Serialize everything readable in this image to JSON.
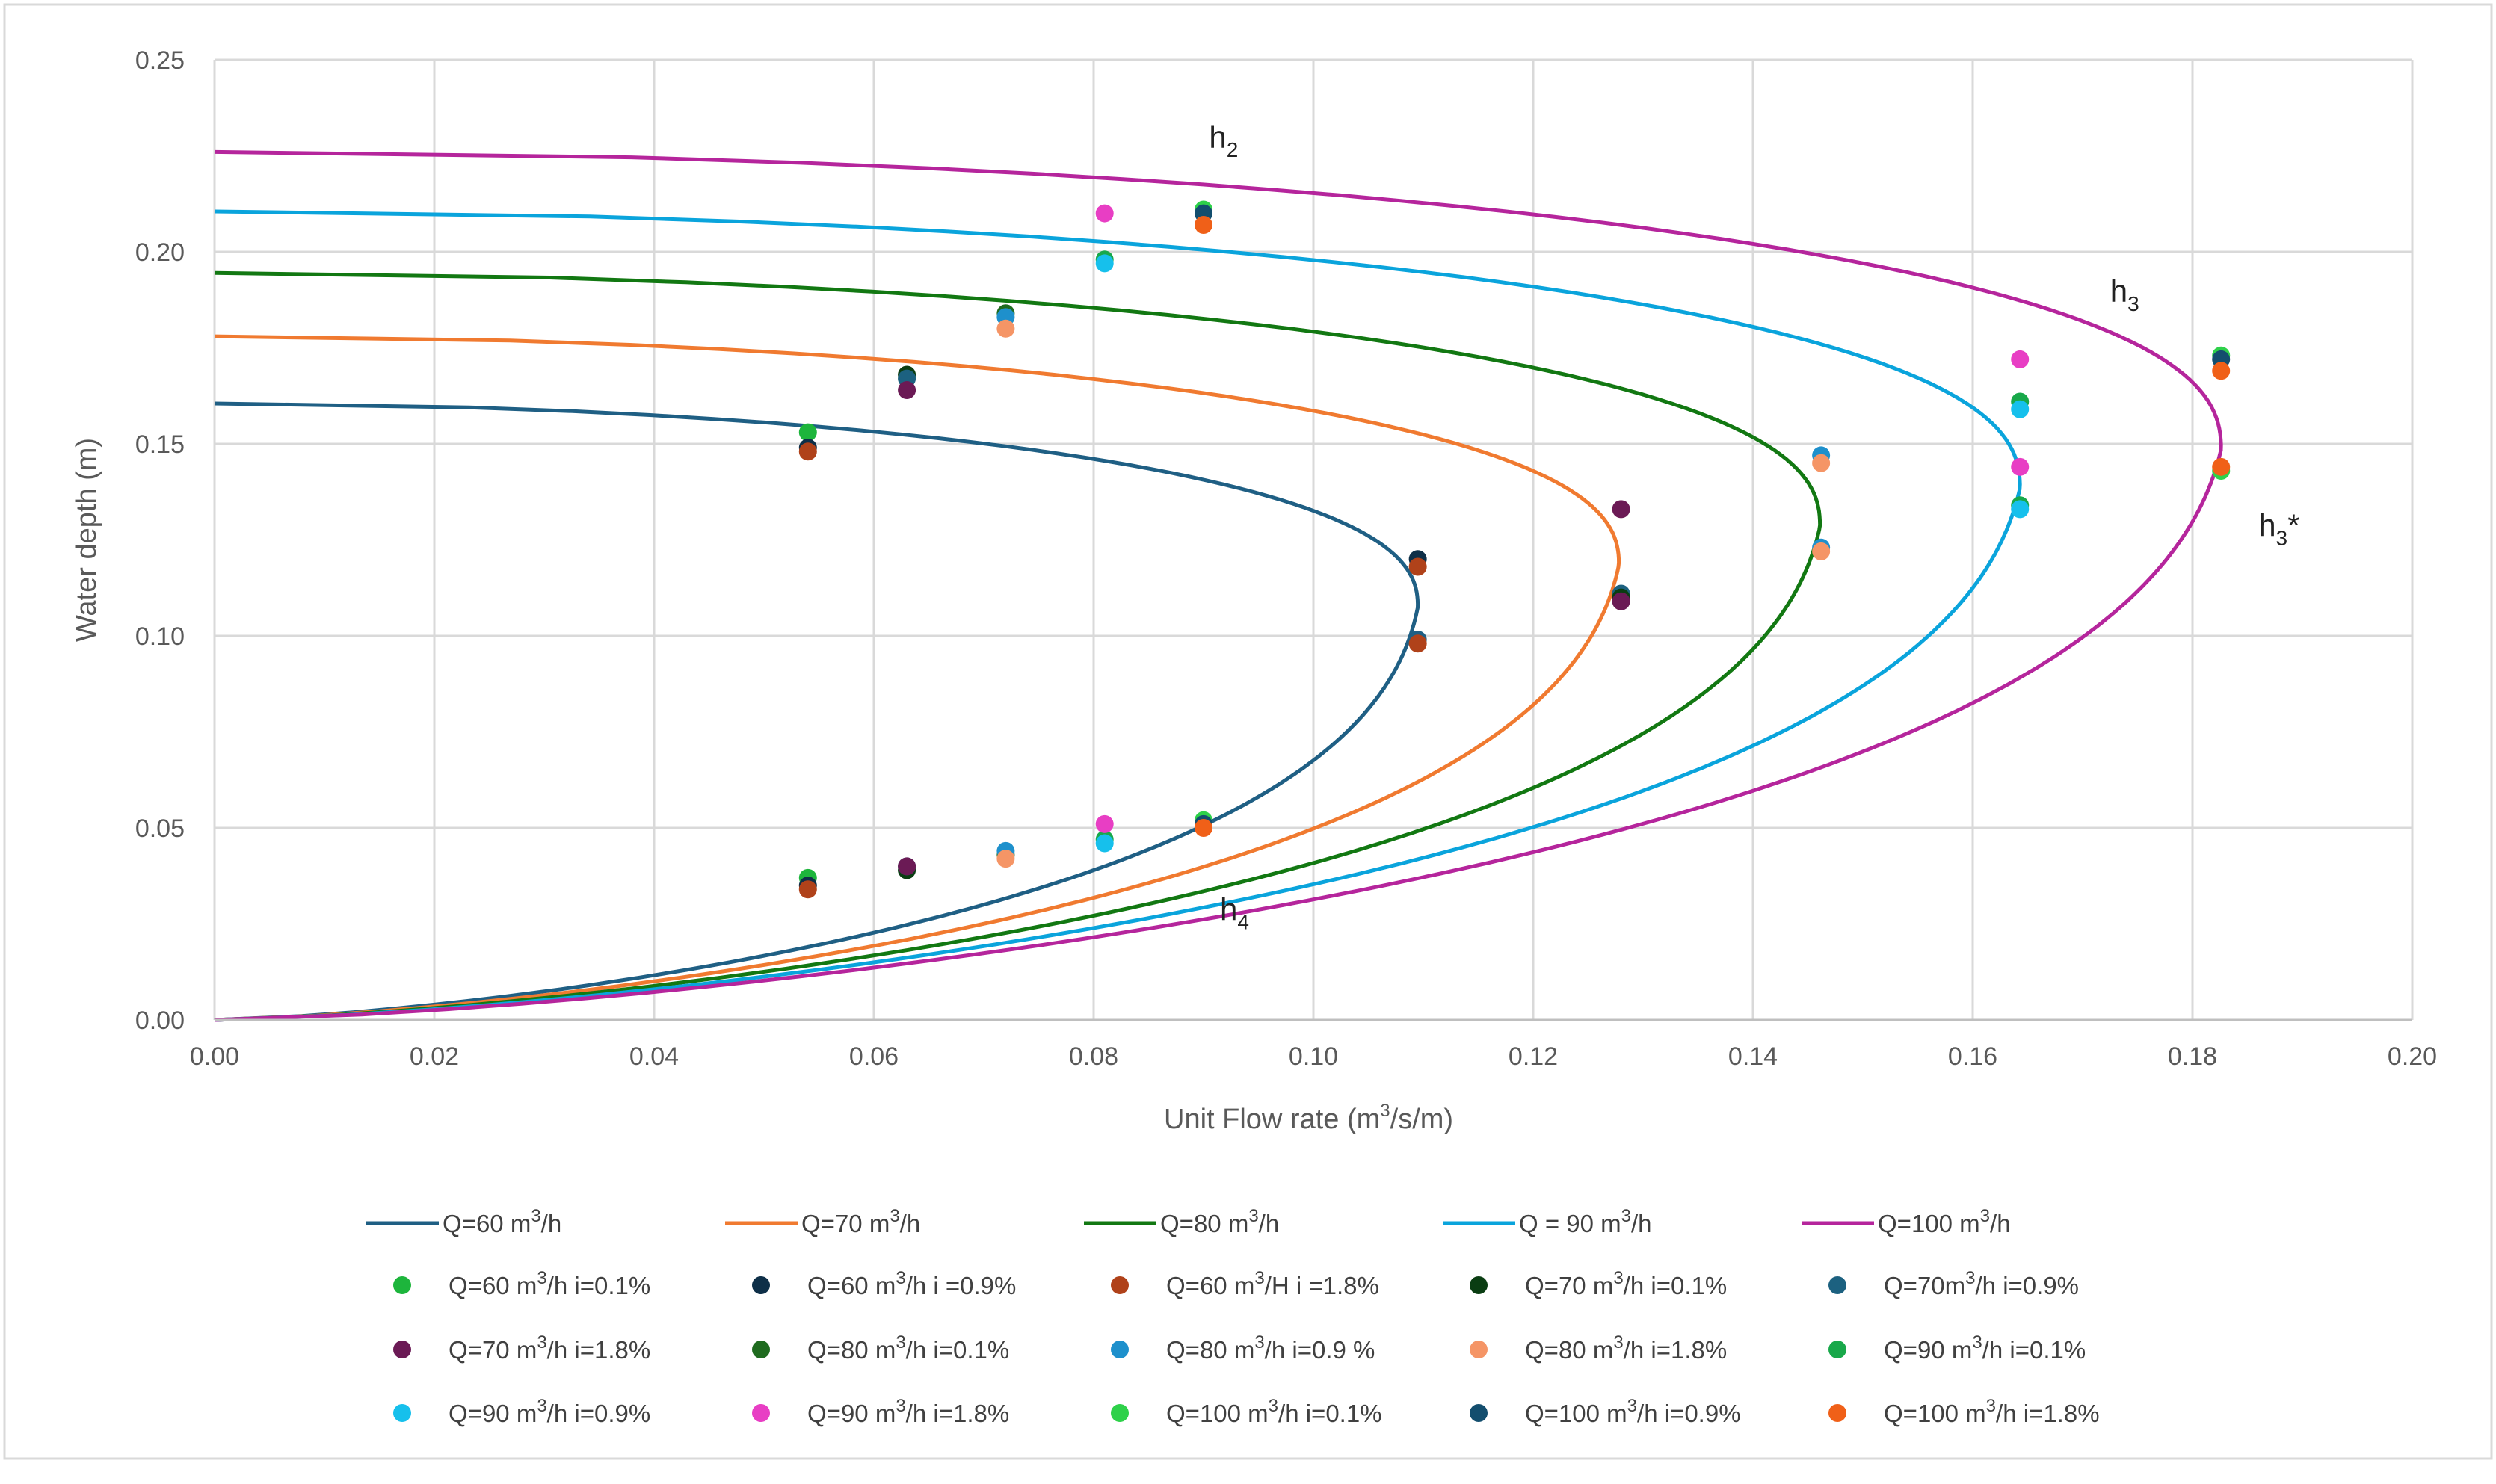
{
  "chart_data": {
    "type": "line",
    "title": "",
    "xlabel_parts": [
      "Unit Flow rate (m",
      "3",
      "/s/m)"
    ],
    "ylabel": "Water depth (m)",
    "xlim": [
      0,
      0.2
    ],
    "ylim": [
      0,
      0.25
    ],
    "x_ticks": [
      "0.00",
      "0.02",
      "0.04",
      "0.06",
      "0.08",
      "0.10",
      "0.12",
      "0.14",
      "0.16",
      "0.18",
      "0.20"
    ],
    "y_ticks": [
      "0.00",
      "0.05",
      "0.10",
      "0.15",
      "0.20",
      "0.25"
    ],
    "grid": true,
    "legend_position": "bottom",
    "annotations": [
      {
        "base": "h",
        "sub": "2",
        "sup": "",
        "suffix": "",
        "x": 0.0905,
        "y": 0.227
      },
      {
        "base": "h",
        "sub": "3",
        "sup": "",
        "suffix": "",
        "x": 0.1725,
        "y": 0.187
      },
      {
        "base": "h",
        "sub": "3",
        "sup": "",
        "suffix": "*",
        "x": 0.186,
        "y": 0.126
      },
      {
        "base": "h",
        "sub": "4",
        "sup": "",
        "suffix": "",
        "x": 0.0915,
        "y": 0.026
      }
    ],
    "curves": [
      {
        "name_pre": "Q=60 m",
        "name_sup": "3",
        "name_post": "/h",
        "color": "#1f5f84",
        "h_upper": 0.1605,
        "h_lower": 0.0,
        "q_crit": 0.1095,
        "y_crit": 0.1075,
        "curvature": 0.06,
        "x_head": 0.008
      },
      {
        "name_pre": "Q=70 m",
        "name_sup": "3",
        "name_post": "/h",
        "color": "#f07a30",
        "h_upper": 0.178,
        "h_lower": 0.0,
        "q_crit": 0.1278,
        "y_crit": 0.1185,
        "curvature": 0.04,
        "x_head": 0.0
      },
      {
        "name_pre": "Q=80 m",
        "name_sup": "3",
        "name_post": "/h",
        "color": "#127812",
        "h_upper": 0.1945,
        "h_lower": 0.0,
        "q_crit": 0.1461,
        "y_crit": 0.1285,
        "curvature": 0.03,
        "x_head": 0.0
      },
      {
        "name_pre": "Q = 90 m",
        "name_sup": "3",
        "name_post": "/h",
        "color": "#0aa4dc",
        "h_upper": 0.2105,
        "h_lower": 0.0,
        "q_crit": 0.1643,
        "y_crit": 0.1385,
        "curvature": 0.03,
        "x_head": 0.004
      },
      {
        "name_pre": "Q=100 m",
        "name_sup": "3",
        "name_post": "/h",
        "color": "#b5259c",
        "h_upper": 0.226,
        "h_lower": 0.0,
        "q_crit": 0.1826,
        "y_crit": 0.1485,
        "curvature": 0.02,
        "x_head": 0.0
      }
    ],
    "point_series": [
      {
        "name_pre": "Q=60 m",
        "name_sup": "3",
        "name_post": "/h i=0.1%",
        "color": "#1db53c",
        "points": [
          [
            0.054,
            0.153
          ],
          [
            0.054,
            0.037
          ]
        ]
      },
      {
        "name_pre": "Q=60 m",
        "name_sup": "3",
        "name_post": "/h i =0.9%",
        "color": "#0e2f48",
        "points": [
          [
            0.054,
            0.149
          ],
          [
            0.054,
            0.035
          ]
        ]
      },
      {
        "name_pre": "Q=60 m",
        "name_sup": "3",
        "name_post": "/H i =1.8%",
        "color": "#b0421a",
        "points": [
          [
            0.054,
            0.148
          ],
          [
            0.054,
            0.034
          ]
        ]
      },
      {
        "name_pre": "Q=70 m",
        "name_sup": "3",
        "name_post": "/h i=0.1%",
        "color": "#0a3d12",
        "points": [
          [
            0.063,
            0.168
          ],
          [
            0.063,
            0.039
          ]
        ]
      },
      {
        "name_pre": "Q=70m",
        "name_sup": "3",
        "name_post": "/h i=0.9%",
        "color": "#1c6180",
        "points": [
          [
            0.063,
            0.167
          ],
          [
            0.063,
            0.04
          ]
        ]
      },
      {
        "name_pre": "Q=70 m",
        "name_sup": "3",
        "name_post": "/h i=1.8%",
        "color": "#6b1a55",
        "points": [
          [
            0.063,
            0.164
          ],
          [
            0.063,
            0.04
          ]
        ]
      },
      {
        "name_pre": "Q=80 m",
        "name_sup": "3",
        "name_post": "/h i=0.1%",
        "color": "#1f6b1f",
        "points": [
          [
            0.072,
            0.184
          ],
          [
            0.072,
            0.043
          ]
        ]
      },
      {
        "name_pre": "Q=80 m",
        "name_sup": "3",
        "name_post": "/h i=0.9 %",
        "color": "#1e90cc",
        "points": [
          [
            0.072,
            0.183
          ],
          [
            0.072,
            0.044
          ]
        ]
      },
      {
        "name_pre": "Q=80 m",
        "name_sup": "3",
        "name_post": "/h i=1.8%",
        "color": "#f59566",
        "points": [
          [
            0.072,
            0.18
          ],
          [
            0.072,
            0.042
          ]
        ]
      },
      {
        "name_pre": "Q=90 m",
        "name_sup": "3",
        "name_post": "/h i=0.1%",
        "color": "#18a84a",
        "points": [
          [
            0.081,
            0.198
          ],
          [
            0.081,
            0.047
          ]
        ]
      },
      {
        "name_pre": "Q=90 m",
        "name_sup": "3",
        "name_post": "/h i=0.9%",
        "color": "#16c0ec",
        "points": [
          [
            0.081,
            0.197
          ],
          [
            0.081,
            0.046
          ]
        ]
      },
      {
        "name_pre": "Q=90 m",
        "name_sup": "3",
        "name_post": "/h i=1.8%",
        "color": "#e83ec4",
        "points": [
          [
            0.081,
            0.21
          ],
          [
            0.081,
            0.051
          ]
        ]
      },
      {
        "name_pre": "Q=100 m",
        "name_sup": "3",
        "name_post": "/h i=0.1%",
        "color": "#2ed14a",
        "points": [
          [
            0.09,
            0.211
          ],
          [
            0.09,
            0.052
          ]
        ]
      },
      {
        "name_pre": "Q=100 m",
        "name_sup": "3",
        "name_post": "/h i=0.9%",
        "color": "#134e6e",
        "points": [
          [
            0.09,
            0.21
          ],
          [
            0.09,
            0.051
          ]
        ]
      },
      {
        "name_pre": "Q=100 m",
        "name_sup": "3",
        "name_post": "/h i=1.8%",
        "color": "#f06018",
        "points": [
          [
            0.09,
            0.207
          ],
          [
            0.09,
            0.05
          ]
        ]
      }
    ],
    "extra_points": [
      {
        "color": "#0e2f48",
        "x": 0.1095,
        "y": 0.12
      },
      {
        "color": "#b0421a",
        "x": 0.1095,
        "y": 0.118
      },
      {
        "color": "#1f5f84",
        "x": 0.1095,
        "y": 0.099
      },
      {
        "color": "#b0421a",
        "x": 0.1095,
        "y": 0.098
      },
      {
        "color": "#6b1a55",
        "x": 0.128,
        "y": 0.133
      },
      {
        "color": "#1c6180",
        "x": 0.128,
        "y": 0.111
      },
      {
        "color": "#0a3d12",
        "x": 0.128,
        "y": 0.11
      },
      {
        "color": "#6b1a55",
        "x": 0.128,
        "y": 0.109
      },
      {
        "color": "#1e90cc",
        "x": 0.1462,
        "y": 0.147
      },
      {
        "color": "#f59566",
        "x": 0.1462,
        "y": 0.145
      },
      {
        "color": "#1e90cc",
        "x": 0.1462,
        "y": 0.123
      },
      {
        "color": "#f59566",
        "x": 0.1462,
        "y": 0.122
      },
      {
        "color": "#e83ec4",
        "x": 0.1643,
        "y": 0.172
      },
      {
        "color": "#18a84a",
        "x": 0.1643,
        "y": 0.161
      },
      {
        "color": "#16c0ec",
        "x": 0.1643,
        "y": 0.159
      },
      {
        "color": "#e83ec4",
        "x": 0.1643,
        "y": 0.144
      },
      {
        "color": "#18a84a",
        "x": 0.1643,
        "y": 0.134
      },
      {
        "color": "#16c0ec",
        "x": 0.1643,
        "y": 0.133
      },
      {
        "color": "#2ed14a",
        "x": 0.1826,
        "y": 0.173
      },
      {
        "color": "#134e6e",
        "x": 0.1826,
        "y": 0.172
      },
      {
        "color": "#f06018",
        "x": 0.1826,
        "y": 0.169
      },
      {
        "color": "#2ed14a",
        "x": 0.1826,
        "y": 0.143
      },
      {
        "color": "#f06018",
        "x": 0.1826,
        "y": 0.144
      }
    ]
  }
}
